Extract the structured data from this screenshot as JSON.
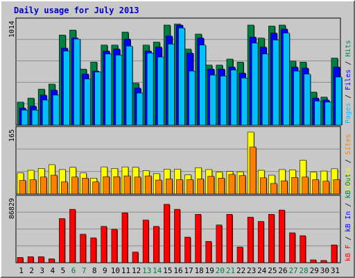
{
  "chart_data": [
    {
      "type": "bar",
      "title": "Daily usage for July 2013",
      "y_max_label": "1014",
      "ylim": [
        0,
        1014
      ],
      "categories": [
        "1",
        "2",
        "3",
        "4",
        "5",
        "6",
        "7",
        "8",
        "9",
        "10",
        "11",
        "12",
        "13",
        "14",
        "15",
        "16",
        "17",
        "18",
        "19",
        "20",
        "21",
        "22",
        "23",
        "24",
        "25",
        "26",
        "27",
        "28",
        "29",
        "30",
        "31"
      ],
      "weekend_days": [
        "6",
        "7",
        "13",
        "14",
        "20",
        "21",
        "27",
        "28"
      ],
      "legend": [
        {
          "text": "Pages",
          "color": "#00c0ff"
        },
        {
          "text": " / ",
          "color": "#000000"
        },
        {
          "text": "Files",
          "color": "#0000ff"
        },
        {
          "text": " / ",
          "color": "#000000"
        },
        {
          "text": "Hits",
          "color": "#008040"
        }
      ],
      "series": [
        {
          "name": "Hits",
          "color": "#008040",
          "values": [
            230,
            270,
            360,
            410,
            900,
            950,
            560,
            630,
            800,
            800,
            930,
            420,
            800,
            830,
            1000,
            1010,
            760,
            910,
            600,
            600,
            660,
            630,
            1000,
            870,
            990,
            1000,
            640,
            630,
            330,
            280,
            670
          ]
        },
        {
          "name": "Files",
          "color": "#0000ff",
          "values": [
            170,
            190,
            300,
            350,
            770,
            870,
            510,
            540,
            740,
            760,
            860,
            370,
            740,
            780,
            890,
            1000,
            720,
            870,
            560,
            560,
            580,
            520,
            880,
            780,
            920,
            960,
            580,
            570,
            270,
            250,
            580
          ]
        },
        {
          "name": "Pages",
          "color": "#00c0ff",
          "values": [
            150,
            150,
            250,
            300,
            740,
            860,
            460,
            530,
            710,
            700,
            790,
            320,
            720,
            680,
            810,
            970,
            540,
            800,
            500,
            490,
            550,
            470,
            820,
            710,
            850,
            920,
            540,
            510,
            240,
            230,
            480
          ]
        }
      ]
    },
    {
      "type": "bar",
      "y_max_label": "165",
      "ylim": [
        0,
        165
      ],
      "categories": [
        "1",
        "2",
        "3",
        "4",
        "5",
        "6",
        "7",
        "8",
        "9",
        "10",
        "11",
        "12",
        "13",
        "14",
        "15",
        "16",
        "17",
        "18",
        "19",
        "20",
        "21",
        "22",
        "23",
        "24",
        "25",
        "26",
        "27",
        "28",
        "29",
        "30",
        "31"
      ],
      "legend": [
        {
          "text": "Visits",
          "color": "#ffff00"
        },
        {
          "text": " / ",
          "color": "#000000"
        },
        {
          "text": "Sites",
          "color": "#ff8000"
        }
      ],
      "series": [
        {
          "name": "Visits",
          "color": "#ffff00",
          "values": [
            56,
            63,
            68,
            78,
            65,
            71,
            56,
            42,
            72,
            68,
            72,
            71,
            62,
            54,
            66,
            66,
            51,
            70,
            65,
            58,
            60,
            59,
            165,
            63,
            50,
            65,
            64,
            90,
            58,
            61,
            67
          ]
        },
        {
          "name": "Sites",
          "color": "#ff8000",
          "values": [
            36,
            38,
            45,
            50,
            32,
            45,
            42,
            32,
            46,
            46,
            48,
            45,
            48,
            37,
            40,
            38,
            38,
            40,
            47,
            42,
            52,
            49,
            125,
            43,
            28,
            35,
            44,
            45,
            38,
            34,
            38
          ]
        }
      ]
    },
    {
      "type": "bar",
      "y_max_label": "86829",
      "ylim": [
        0,
        86829
      ],
      "categories": [
        "1",
        "2",
        "3",
        "4",
        "5",
        "6",
        "7",
        "8",
        "9",
        "10",
        "11",
        "12",
        "13",
        "14",
        "15",
        "16",
        "17",
        "18",
        "19",
        "20",
        "21",
        "22",
        "23",
        "24",
        "25",
        "26",
        "27",
        "28",
        "29",
        "30",
        "31"
      ],
      "legend": [
        {
          "text": "kB F",
          "color": "#ff0000"
        },
        {
          "text": " / ",
          "color": "#000000"
        },
        {
          "text": "kB In",
          "color": "#0000ff"
        },
        {
          "text": " / ",
          "color": "#000000"
        },
        {
          "text": "kB Out",
          "color": "#008040"
        }
      ],
      "series": [
        {
          "name": "kB F",
          "color": "#ff0000",
          "values": [
            7500,
            8500,
            8500,
            5500,
            62000,
            75000,
            40000,
            35000,
            51000,
            47000,
            70000,
            15000,
            60000,
            51000,
            82000,
            75000,
            36000,
            68000,
            30000,
            53000,
            68000,
            22000,
            64000,
            58000,
            68000,
            74000,
            42000,
            38000,
            4000,
            3200,
            25000
          ]
        }
      ]
    }
  ]
}
